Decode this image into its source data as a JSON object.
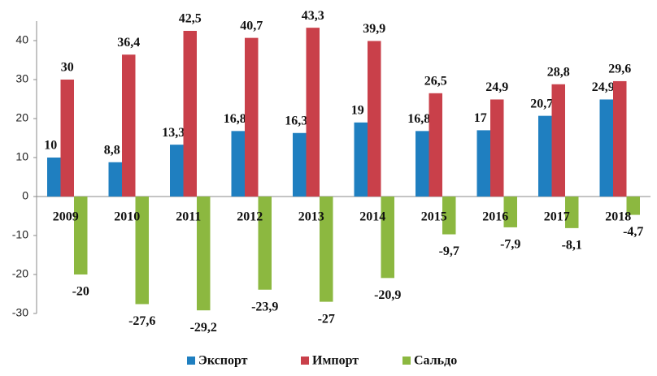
{
  "chart_data": {
    "type": "bar",
    "categories": [
      "2009",
      "2010",
      "2011",
      "2012",
      "2013",
      "2014",
      "2015",
      "2016",
      "2017",
      "2018"
    ],
    "series": [
      {
        "name": "Экспорт",
        "color": "#1f7fc0",
        "values": [
          10,
          8.8,
          13.3,
          16.8,
          16.3,
          19,
          16.8,
          17,
          20.7,
          24.9
        ],
        "value_labels": [
          "10",
          "8,8",
          "13,3",
          "16,8",
          "16,3",
          "19",
          "16,8",
          "17",
          "20,7",
          "24,9"
        ]
      },
      {
        "name": "Импорт",
        "color": "#c9404a",
        "values": [
          30,
          36.4,
          42.5,
          40.7,
          43.3,
          39.9,
          26.5,
          24.9,
          28.8,
          29.6
        ],
        "value_labels": [
          "30",
          "36,4",
          "42,5",
          "40,7",
          "43,3",
          "39,9",
          "26,5",
          "24,9",
          "28,8",
          "29,6"
        ]
      },
      {
        "name": "Сальдо",
        "color": "#8cb840",
        "values": [
          -20,
          -27.6,
          -29.2,
          -23.9,
          -27,
          -20.9,
          -9.7,
          -7.9,
          -8.1,
          -4.7
        ],
        "value_labels": [
          "-20",
          "-27,6",
          "-29,2",
          "-23,9",
          "-27",
          "-20,9",
          "-9,7",
          "-7,9",
          "-8,1",
          "-4,7"
        ]
      }
    ],
    "ylim": [
      -30,
      45
    ],
    "yticks": [
      -30,
      -20,
      -10,
      0,
      10,
      20,
      30,
      40
    ],
    "grid": false,
    "legend": "bottom"
  }
}
